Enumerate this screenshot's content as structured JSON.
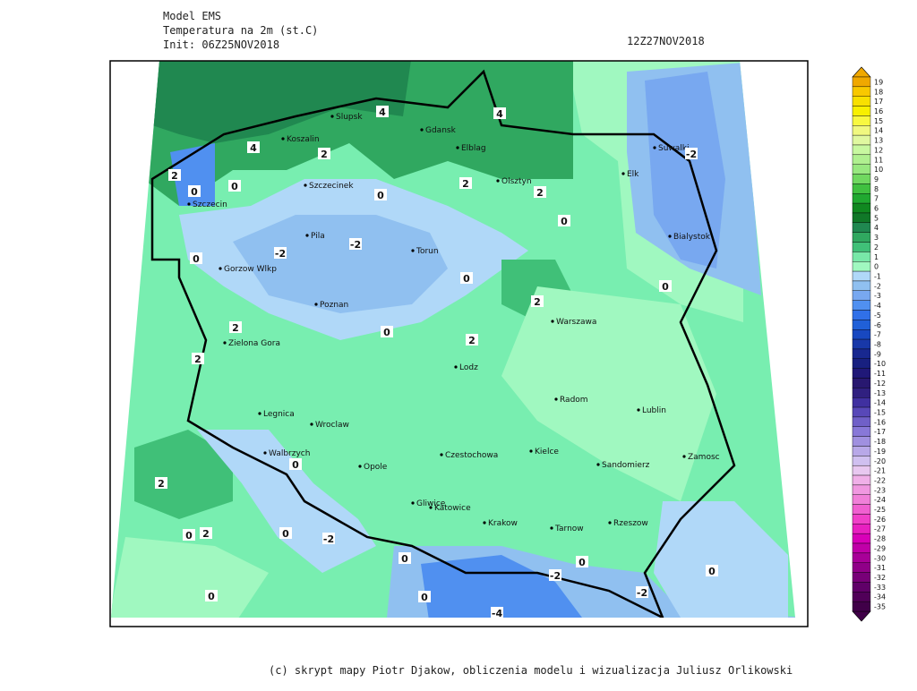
{
  "header": {
    "model": "Model EMS",
    "variable": "Temperatura na 2m (st.C)",
    "init": "Init: 06Z25NOV2018",
    "valid": "12Z27NOV2018"
  },
  "map": {
    "cities": [
      "Slupsk",
      "Koszalin",
      "Gdansk",
      "Elblag",
      "Olsztyn",
      "Elk",
      "Suwalki",
      "Szczecinek",
      "Szczecin",
      "Pila",
      "Torun",
      "Bialystok",
      "Gorzow Wlkp",
      "Poznan",
      "Warszawa",
      "Zielona Gora",
      "Lodz",
      "Legnica",
      "Wroclaw",
      "Radom",
      "Lublin",
      "Walbrzych",
      "Opole",
      "Czestochowa",
      "Kielce",
      "Sandomierz",
      "Zamosc",
      "Gliwice",
      "Katowice",
      "Krakow",
      "Tarnow",
      "Rzeszow"
    ],
    "contour_labels": [
      4,
      4,
      4,
      2,
      2,
      0,
      0,
      0,
      2,
      2,
      0,
      -2,
      -2,
      -2,
      0,
      0,
      0,
      2,
      0,
      2,
      2,
      2,
      0,
      2,
      0,
      2,
      0,
      -2,
      0,
      0,
      -2,
      0,
      -4,
      -2,
      0,
      0
    ]
  },
  "colorbar": {
    "levels": [
      19,
      18,
      17,
      16,
      15,
      14,
      13,
      12,
      11,
      10,
      9,
      8,
      7,
      6,
      5,
      4,
      3,
      2,
      1,
      0,
      -1,
      -2,
      -3,
      -4,
      -5,
      -6,
      -7,
      -8,
      -9,
      -10,
      -11,
      -12,
      -13,
      -14,
      -15,
      -16,
      -17,
      -18,
      -19,
      -20,
      -21,
      -22,
      -23,
      -24,
      -25,
      -26,
      -27,
      -28,
      -29,
      -30,
      -31,
      -32,
      -33,
      -34,
      -35
    ],
    "colors": [
      "#f0a800",
      "#f8c800",
      "#f8e000",
      "#f8f000",
      "#f8f840",
      "#f0f880",
      "#e0f8a0",
      "#c8f8a0",
      "#b0f090",
      "#98e880",
      "#70d860",
      "#40c040",
      "#20a830",
      "#108820",
      "#107828",
      "#208850",
      "#30a860",
      "#40c078",
      "#78e8a8",
      "#a0f8c0",
      "#b0d8f8",
      "#90c0f0",
      "#78a8f0",
      "#5090f0",
      "#3070e8",
      "#2060d8",
      "#1848c0",
      "#1838a8",
      "#182890",
      "#182080",
      "#201878",
      "#281870",
      "#302080",
      "#4030a0",
      "#5848b8",
      "#7060c8",
      "#8878d8",
      "#a090e0",
      "#b8a8e8",
      "#d0c0f0",
      "#e8c8f0",
      "#f0b0e8",
      "#f098e0",
      "#f080d8",
      "#f060d0",
      "#f040c8",
      "#e820c0",
      "#d800b8",
      "#c000a8",
      "#a80098",
      "#900088",
      "#780078",
      "#600068",
      "#500058",
      "#400048"
    ]
  },
  "footer": "(c) skrypt mapy Piotr Djakow, obliczenia modelu i wizualizacja Juliusz Orlikowski"
}
